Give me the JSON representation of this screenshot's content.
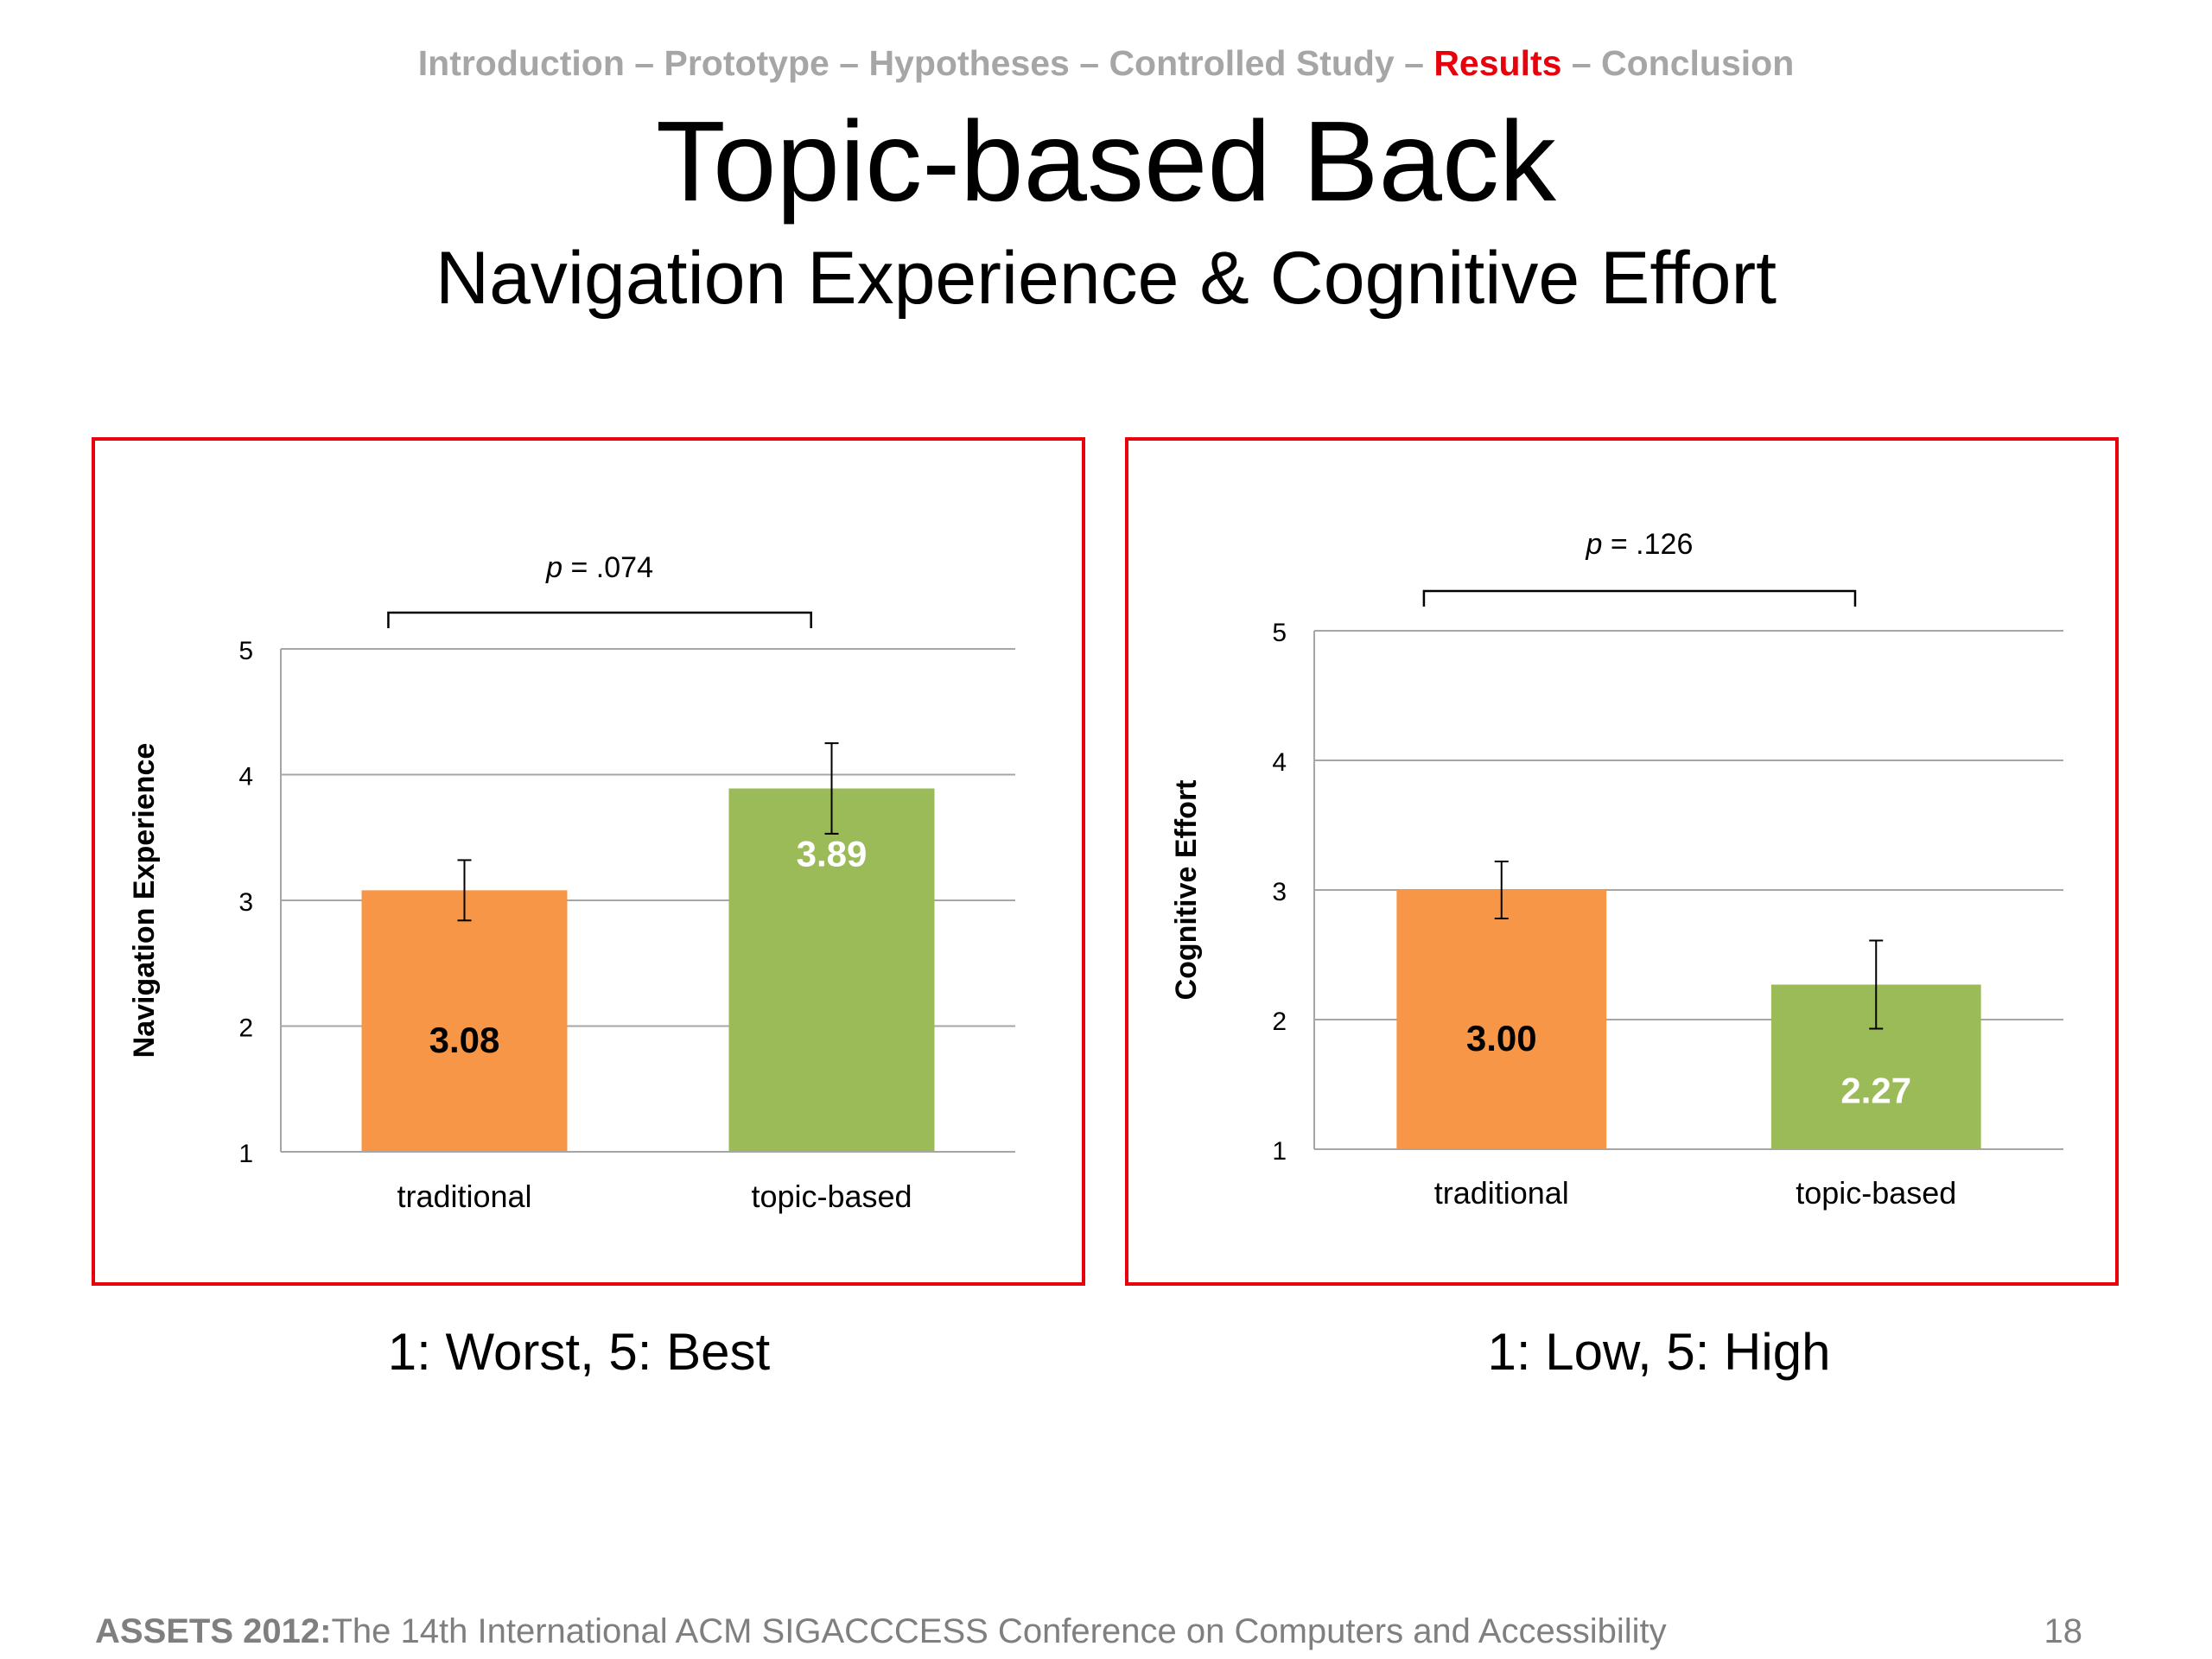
{
  "breadcrumb": {
    "items": [
      "Introduction",
      "Prototype",
      "Hypotheses",
      "Controlled Study",
      "Results",
      "Conclusion"
    ],
    "active": "Results",
    "separator": " – ",
    "active_color": "#e8000b",
    "inactive_color": "#a6a6a6"
  },
  "slide": {
    "title": "Topic-based Back",
    "subtitle": "Navigation Experience & Cognitive Effort"
  },
  "chart_data": [
    {
      "type": "bar",
      "ylabel": "Navigation Experience",
      "categories": [
        "traditional",
        "topic-based"
      ],
      "values": [
        3.08,
        3.89
      ],
      "value_labels": [
        "3.08",
        "3.89"
      ],
      "errors": [
        0.24,
        0.36
      ],
      "colors": [
        "#f79646",
        "#9bbb59"
      ],
      "value_label_colors": [
        "#000000",
        "#ffffff"
      ],
      "ylim": [
        1,
        5
      ],
      "yticks": [
        "1",
        "2",
        "3",
        "4",
        "5"
      ],
      "grid": true,
      "annotation": {
        "prefix": "p",
        "text": " = .074"
      },
      "scale_note": "1: Worst, 5: Best"
    },
    {
      "type": "bar",
      "ylabel": "Cognitive Effort",
      "categories": [
        "traditional",
        "topic-based"
      ],
      "values": [
        3.0,
        2.27
      ],
      "value_labels": [
        "3.00",
        "2.27"
      ],
      "errors": [
        0.22,
        0.34
      ],
      "colors": [
        "#f79646",
        "#9bbb59"
      ],
      "value_label_colors": [
        "#000000",
        "#ffffff"
      ],
      "ylim": [
        1,
        5
      ],
      "yticks": [
        "1",
        "2",
        "3",
        "4",
        "5"
      ],
      "grid": true,
      "annotation": {
        "prefix": "p",
        "text": " = .126"
      },
      "scale_note": "1: Low, 5: High"
    }
  ],
  "footer": {
    "conference": "ASSETS 2012:",
    "description": "The 14th International ACM SIGACCCESS Conference on Computers and Accessibility",
    "page_number": "18"
  }
}
